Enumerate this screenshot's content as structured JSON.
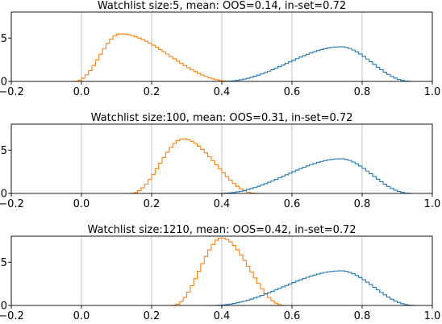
{
  "chart_data": [
    {
      "type": "line",
      "title": "Watchlist size:5, mean: OOS=0.14, in-set=0.72",
      "xlim": [
        -0.2,
        1.0
      ],
      "ylim": [
        0,
        8
      ],
      "xticks": [
        "−0.2",
        "0.0",
        "0.2",
        "0.4",
        "0.6",
        "0.8",
        "1.0"
      ],
      "yticks": [
        "0",
        "5"
      ],
      "grid": true,
      "series": [
        {
          "color": "#ff7f0e",
          "shape": "skewed-bell",
          "start": -0.02,
          "peak": 0.11,
          "end": 0.43,
          "peak_value": 5.5,
          "mean": 0.14
        },
        {
          "color": "#1f77b4",
          "shape": "skewed-bell",
          "start": 0.4,
          "peak": 0.74,
          "end": 0.94,
          "peak_value": 4.0,
          "mean": 0.72
        }
      ]
    },
    {
      "type": "line",
      "title": "Watchlist size:100, mean: OOS=0.31, in-set=0.72",
      "xlim": [
        -0.2,
        1.0
      ],
      "ylim": [
        0,
        8
      ],
      "xticks": [
        "−0.2",
        "0.0",
        "0.2",
        "0.4",
        "0.6",
        "0.8",
        "1.0"
      ],
      "yticks": [
        "0",
        "5"
      ],
      "grid": true,
      "series": [
        {
          "color": "#ff7f0e",
          "shape": "skewed-bell",
          "start": 0.14,
          "peak": 0.29,
          "end": 0.5,
          "peak_value": 6.3,
          "mean": 0.31
        },
        {
          "color": "#1f77b4",
          "shape": "skewed-bell",
          "start": 0.39,
          "peak": 0.74,
          "end": 0.94,
          "peak_value": 4.0,
          "mean": 0.72
        }
      ]
    },
    {
      "type": "line",
      "title": "Watchlist size:1210, mean: OOS=0.42, in-set=0.72",
      "xlim": [
        -0.2,
        1.0
      ],
      "ylim": [
        0,
        8
      ],
      "xticks": [
        "−0.2",
        "0.0",
        "0.2",
        "0.4",
        "0.6",
        "0.8",
        "1.0"
      ],
      "yticks": [
        "0",
        "5"
      ],
      "grid": true,
      "series": [
        {
          "color": "#ff7f0e",
          "shape": "skewed-bell",
          "start": 0.26,
          "peak": 0.4,
          "end": 0.58,
          "peak_value": 7.8,
          "mean": 0.42
        },
        {
          "color": "#1f77b4",
          "shape": "skewed-bell",
          "start": 0.37,
          "peak": 0.74,
          "end": 0.95,
          "peak_value": 4.0,
          "mean": 0.72
        }
      ]
    }
  ]
}
